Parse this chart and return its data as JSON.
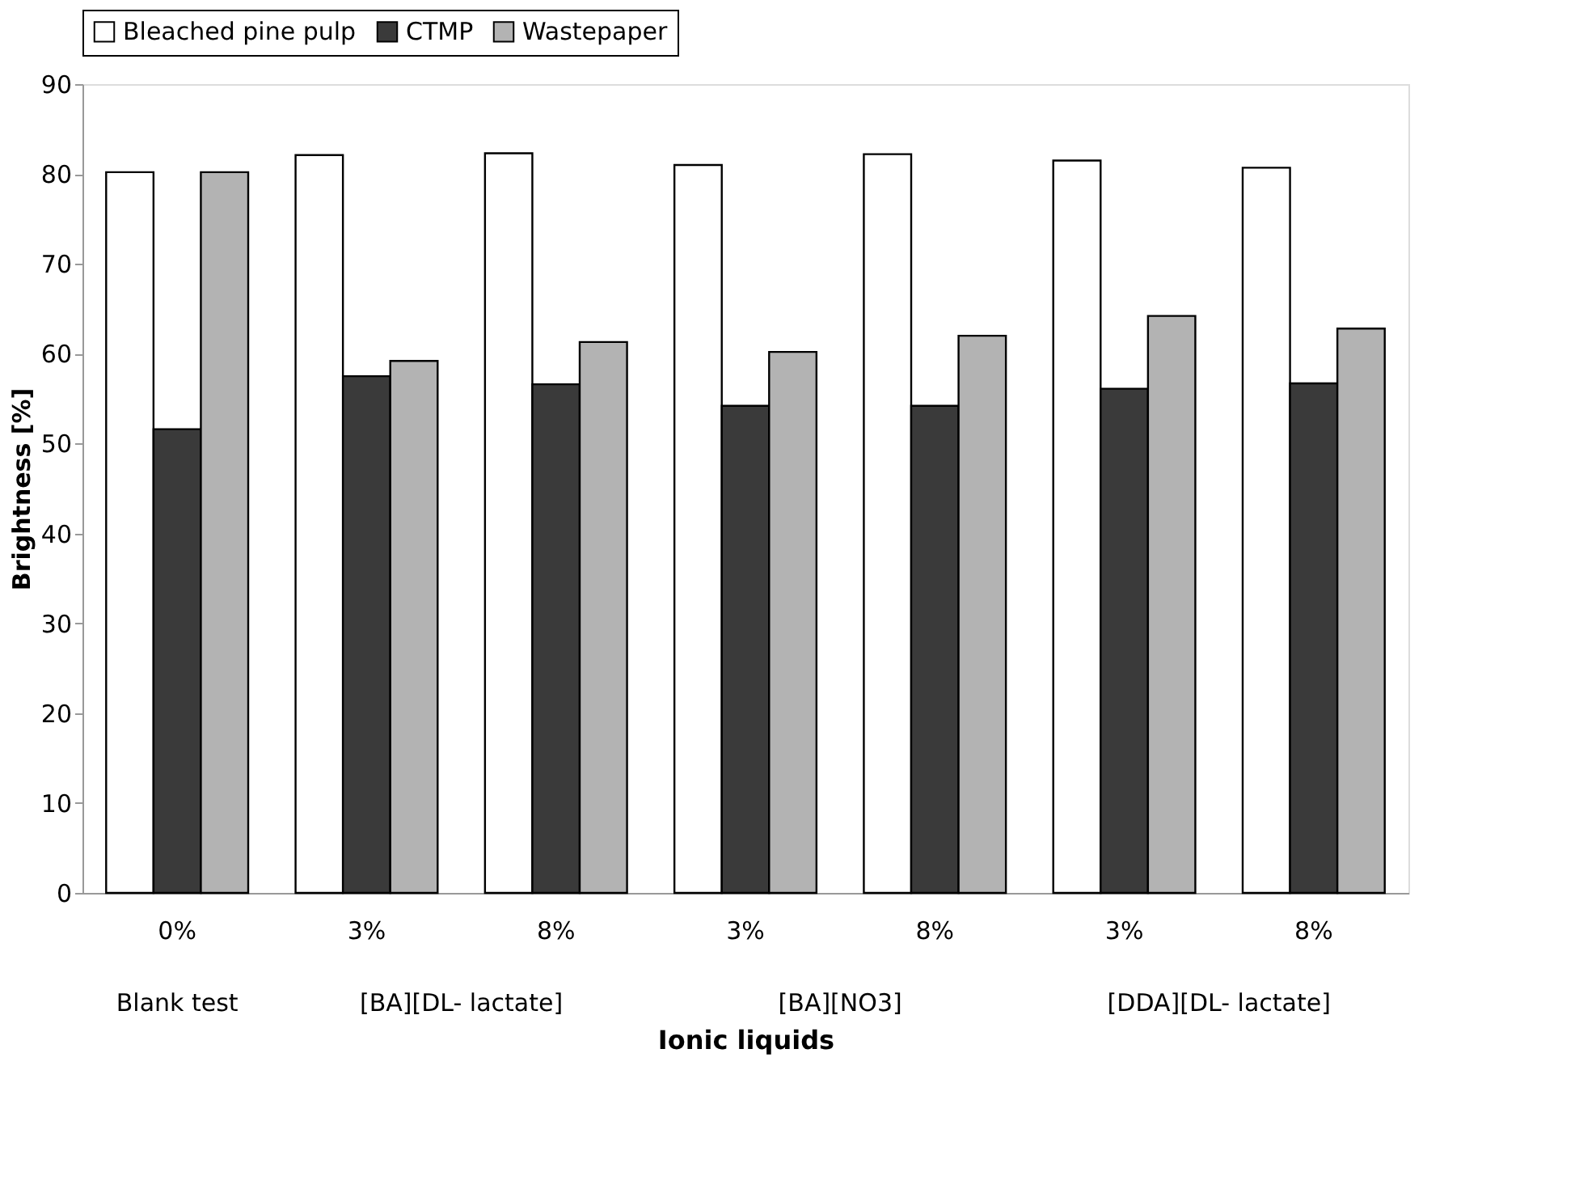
{
  "chart_data": {
    "type": "bar",
    "xlabel": "Ionic liquids",
    "ylabel": "Brightness [%]",
    "categories": [
      "0%",
      "3%",
      "8%",
      "3%",
      "8%",
      "3%",
      "8%"
    ],
    "annotations": [
      "Blank test",
      "[BA][DL- lactate]",
      "[BA][NO3]",
      "[DDA][DL- lactate]"
    ],
    "series": [
      {
        "name": "Bleached pine pulp",
        "color": "#ffffff",
        "values": [
          80.2,
          82.1,
          82.3,
          81.0,
          82.2,
          81.5,
          80.7
        ]
      },
      {
        "name": "CTMP",
        "color": "#3a3a3a",
        "values": [
          51.6,
          57.5,
          56.6,
          54.2,
          54.2,
          56.1,
          56.7
        ]
      },
      {
        "name": "Wastepaper",
        "color": "#b3b3b3",
        "values": [
          80.2,
          59.2,
          61.3,
          60.2,
          62.0,
          64.2,
          62.8
        ]
      }
    ],
    "ylim": [
      0,
      90
    ],
    "yticks": [
      0,
      10,
      20,
      30,
      40,
      50,
      60,
      70,
      80,
      90
    ],
    "grid": false,
    "legend": "top"
  }
}
